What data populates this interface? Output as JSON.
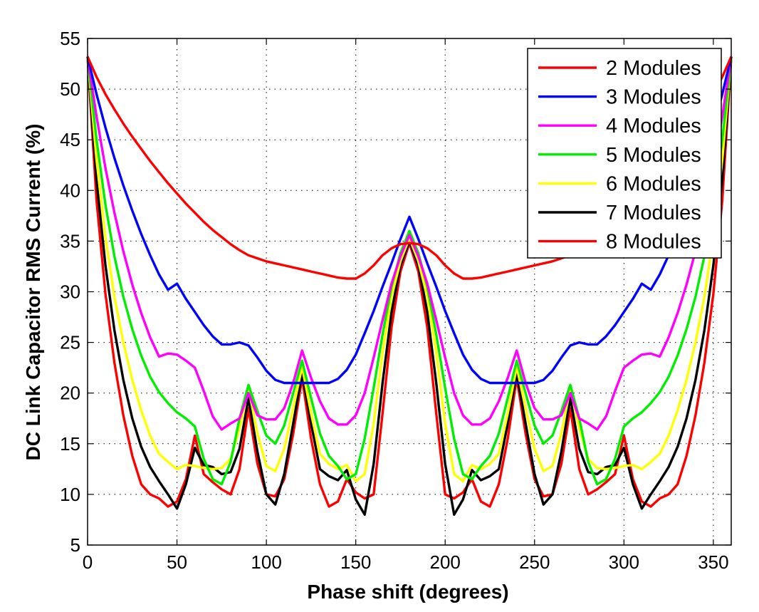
{
  "chart_data": {
    "type": "line",
    "title": "",
    "xlabel": "Phase shift (degrees)",
    "ylabel": "DC Link Capacitor RMS Current (%)",
    "xlim": [
      0,
      360
    ],
    "ylim": [
      5,
      55
    ],
    "xticks": [
      0,
      50,
      100,
      150,
      200,
      250,
      300,
      350
    ],
    "yticks": [
      5,
      10,
      15,
      20,
      25,
      30,
      35,
      40,
      45,
      50,
      55
    ],
    "grid": true,
    "legend_position": "top-right",
    "series": [
      {
        "name": "2 Modules",
        "color": "#ff0000",
        "x": [
          0,
          5,
          10,
          15,
          20,
          25,
          30,
          35,
          40,
          45,
          50,
          55,
          60,
          65,
          70,
          75,
          80,
          85,
          90,
          95,
          100,
          105,
          110,
          115,
          120,
          125,
          130,
          135,
          140,
          145,
          150,
          155,
          160,
          165,
          170,
          175,
          180
        ],
        "y": [
          53.2,
          51.2,
          49.5,
          48.0,
          46.6,
          45.3,
          44.1,
          42.9,
          41.8,
          40.7,
          39.7,
          38.7,
          37.8,
          36.9,
          36.1,
          35.4,
          34.7,
          34.1,
          33.6,
          33.3,
          33.0,
          32.8,
          32.6,
          32.4,
          32.2,
          32.0,
          31.8,
          31.6,
          31.4,
          31.3,
          31.3,
          31.8,
          32.6,
          33.6,
          34.3,
          34.7,
          34.8
        ],
        "mirror": true
      },
      {
        "name": "3 Modules",
        "color": "#0000ff",
        "x": [
          0,
          5,
          10,
          15,
          20,
          25,
          30,
          35,
          40,
          45,
          50,
          55,
          60,
          65,
          70,
          75,
          80,
          85,
          90,
          95,
          100,
          105,
          110,
          115,
          120,
          125,
          130,
          135,
          140,
          145,
          150,
          155,
          160,
          165,
          170,
          175,
          180
        ],
        "y": [
          53.2,
          49.5,
          46.2,
          43.2,
          40.5,
          38.0,
          35.7,
          33.6,
          31.7,
          30.2,
          30.8,
          29.3,
          28.0,
          26.7,
          25.6,
          24.8,
          24.8,
          25.0,
          24.7,
          23.5,
          22.2,
          21.3,
          21.0,
          21.0,
          21.0,
          21.0,
          21.0,
          21.0,
          21.4,
          22.3,
          23.8,
          25.9,
          28.1,
          30.5,
          32.8,
          35.2,
          37.4
        ],
        "mirror": true
      },
      {
        "name": "4 Modules",
        "color": "#ff00ff",
        "x": [
          0,
          5,
          10,
          15,
          20,
          25,
          30,
          35,
          40,
          45,
          50,
          55,
          60,
          65,
          70,
          75,
          80,
          85,
          90,
          95,
          100,
          105,
          110,
          115,
          120,
          125,
          130,
          135,
          140,
          145,
          150,
          155,
          160,
          165,
          170,
          175,
          180
        ],
        "y": [
          53.2,
          47.3,
          42.2,
          37.8,
          34.0,
          30.7,
          27.9,
          25.5,
          23.6,
          23.9,
          23.8,
          23.2,
          22.5,
          20.2,
          17.7,
          16.4,
          17.0,
          17.5,
          20.0,
          17.8,
          17.4,
          17.4,
          18.5,
          21.0,
          24.2,
          21.5,
          19.2,
          17.5,
          16.9,
          16.9,
          17.8,
          20.0,
          23.5,
          27.2,
          30.8,
          33.5,
          35.6
        ],
        "mirror": true
      },
      {
        "name": "5 Modules",
        "color": "#00ee00",
        "x": [
          0,
          5,
          10,
          15,
          20,
          25,
          30,
          35,
          40,
          45,
          50,
          55,
          60,
          65,
          70,
          75,
          80,
          85,
          90,
          95,
          100,
          105,
          110,
          115,
          120,
          125,
          130,
          135,
          140,
          145,
          150,
          155,
          160,
          165,
          170,
          175,
          180
        ],
        "y": [
          53.2,
          45.0,
          38.6,
          33.5,
          29.5,
          26.3,
          23.7,
          21.6,
          20.1,
          19.0,
          18.1,
          17.5,
          16.7,
          13.5,
          11.5,
          11.0,
          13.2,
          17.5,
          20.8,
          18.2,
          15.8,
          15.0,
          16.8,
          20.0,
          23.2,
          19.5,
          16.0,
          13.8,
          12.8,
          11.5,
          12.0,
          15.5,
          20.5,
          25.8,
          30.5,
          33.8,
          36.0
        ],
        "mirror": true
      },
      {
        "name": "6 Modules",
        "color": "#ffff00",
        "x": [
          0,
          5,
          10,
          15,
          20,
          25,
          30,
          35,
          40,
          45,
          50,
          55,
          60,
          65,
          70,
          75,
          80,
          85,
          90,
          95,
          100,
          105,
          110,
          115,
          120,
          125,
          130,
          135,
          140,
          145,
          150,
          155,
          160,
          165,
          170,
          175,
          180
        ],
        "y": [
          53.2,
          43.0,
          35.4,
          29.5,
          25.0,
          21.3,
          18.3,
          15.8,
          14.0,
          13.2,
          12.5,
          12.9,
          12.8,
          12.6,
          12.5,
          12.6,
          13.5,
          16.5,
          20.5,
          16.0,
          12.8,
          12.3,
          14.5,
          18.5,
          22.6,
          18.0,
          14.0,
          13.0,
          12.5,
          12.9,
          11.3,
          12.0,
          17.0,
          24.0,
          29.5,
          33.0,
          35.3
        ],
        "mirror": true
      },
      {
        "name": "7 Modules",
        "color": "#000000",
        "x": [
          0,
          5,
          10,
          15,
          20,
          25,
          30,
          35,
          40,
          45,
          50,
          55,
          60,
          65,
          70,
          75,
          80,
          85,
          90,
          95,
          100,
          105,
          110,
          115,
          120,
          125,
          130,
          135,
          140,
          145,
          150,
          155,
          160,
          165,
          170,
          175,
          180
        ],
        "y": [
          53.2,
          41.0,
          32.6,
          26.2,
          21.3,
          17.5,
          14.7,
          12.7,
          11.3,
          10.0,
          8.6,
          11.0,
          14.6,
          12.9,
          12.7,
          12.0,
          12.2,
          14.5,
          19.5,
          14.2,
          10.0,
          9.0,
          12.0,
          17.0,
          22.0,
          17.0,
          12.5,
          11.8,
          11.4,
          12.4,
          9.5,
          8.0,
          13.0,
          21.0,
          28.0,
          32.6,
          35.0
        ],
        "mirror": true
      },
      {
        "name": "8 Modules",
        "color": "#ff0000",
        "x": [
          0,
          5,
          10,
          15,
          20,
          25,
          30,
          35,
          40,
          45,
          50,
          55,
          60,
          65,
          70,
          75,
          80,
          85,
          90,
          95,
          100,
          105,
          110,
          115,
          120,
          125,
          130,
          135,
          140,
          145,
          150,
          155,
          160,
          165,
          170,
          175,
          180
        ],
        "y": [
          53.2,
          39.0,
          29.8,
          23.0,
          17.8,
          13.8,
          11.0,
          10.0,
          9.6,
          8.8,
          9.3,
          11.5,
          15.8,
          12.0,
          11.2,
          10.5,
          10.0,
          12.5,
          18.5,
          13.0,
          10.0,
          9.8,
          11.5,
          16.0,
          21.5,
          15.5,
          11.0,
          8.8,
          9.3,
          11.5,
          10.2,
          9.6,
          10.0,
          18.0,
          26.5,
          32.0,
          34.8
        ],
        "mirror": true
      }
    ]
  }
}
